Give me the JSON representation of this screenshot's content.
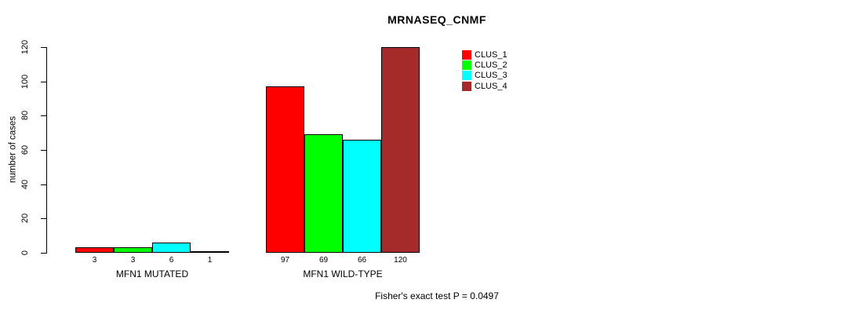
{
  "chart_data": {
    "type": "bar",
    "title": "MRNASEQ_CNMF",
    "ylabel": "number of cases",
    "xlabel": "",
    "ylim": [
      0,
      120
    ],
    "yticks": [
      0,
      20,
      40,
      60,
      80,
      100,
      120
    ],
    "categories": [
      "MFN1 MUTATED",
      "MFN1 WILD-TYPE"
    ],
    "series": [
      {
        "name": "CLUS_1",
        "color": "#FF0000",
        "values": [
          3,
          97
        ]
      },
      {
        "name": "CLUS_2",
        "color": "#00FF00",
        "values": [
          3,
          69
        ]
      },
      {
        "name": "CLUS_3",
        "color": "#00FFFF",
        "values": [
          6,
          66
        ]
      },
      {
        "name": "CLUS_4",
        "color": "#A52A2A",
        "values": [
          1,
          120
        ]
      }
    ],
    "bar_value_labels": [
      [
        "3",
        "3",
        "6",
        "1"
      ],
      [
        "97",
        "69",
        "66",
        "120"
      ]
    ],
    "legend_position": "top-right",
    "grid": false,
    "background": "#FFFFFF",
    "axis_color": "#000000",
    "footnote": "Fisher's exact test P = 0.0497"
  }
}
